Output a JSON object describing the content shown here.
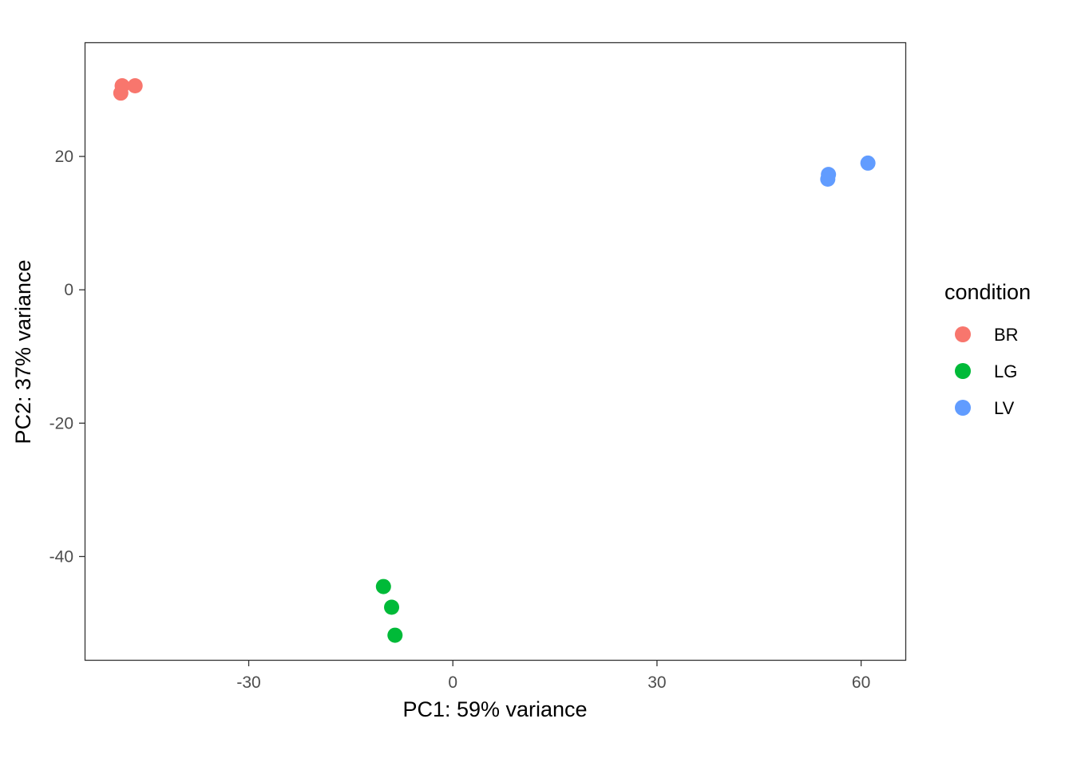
{
  "chart_data": {
    "type": "scatter",
    "xlabel": "PC1: 59% variance",
    "ylabel": "PC2: 37% variance",
    "xlim": [
      -54,
      66.5
    ],
    "ylim": [
      -55.5,
      37
    ],
    "x_ticks": [
      -30,
      0,
      30,
      60
    ],
    "y_ticks": [
      -40,
      -20,
      0,
      20
    ],
    "grid": false,
    "legend": {
      "title": "condition",
      "position": "right"
    },
    "series": [
      {
        "name": "BR",
        "color": "#F8766D",
        "points": [
          {
            "x": -48.6,
            "y": 30.6
          },
          {
            "x": -46.7,
            "y": 30.6
          },
          {
            "x": -48.8,
            "y": 29.5
          }
        ]
      },
      {
        "name": "LG",
        "color": "#00BA38",
        "points": [
          {
            "x": -10.2,
            "y": -44.5
          },
          {
            "x": -9.0,
            "y": -47.6
          },
          {
            "x": -8.5,
            "y": -51.8
          }
        ]
      },
      {
        "name": "LV",
        "color": "#619CFF",
        "points": [
          {
            "x": 55.2,
            "y": 17.3
          },
          {
            "x": 55.1,
            "y": 16.6
          },
          {
            "x": 61.0,
            "y": 19.0
          }
        ]
      }
    ]
  }
}
